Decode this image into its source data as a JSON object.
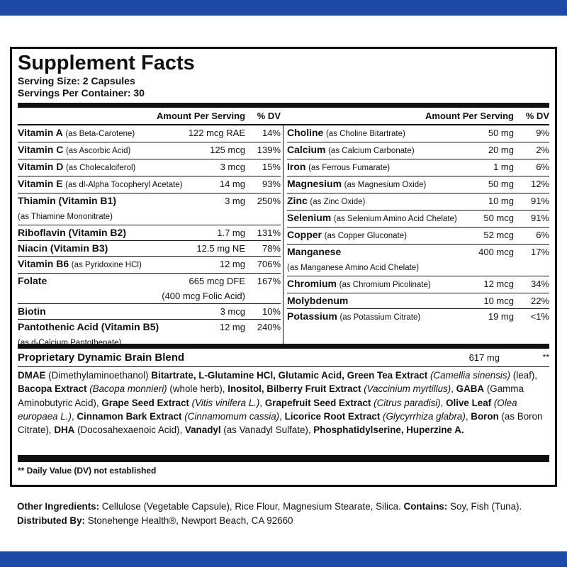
{
  "header": {
    "title": "Supplement Facts",
    "serving_size": "Serving Size: 2 Capsules",
    "servings_per_container": "Servings Per Container: 30"
  },
  "column_headers": {
    "amount": "Amount Per Serving",
    "dv": "% DV"
  },
  "left_nutrients": [
    {
      "name": "Vitamin A",
      "detail": "(as Beta-Carotene)",
      "amount": "122 mcg RAE",
      "dv": "14%"
    },
    {
      "name": "Vitamin C",
      "detail": "(as Ascorbic Acid)",
      "amount": "125 mcg",
      "dv": "139%"
    },
    {
      "name": "Vitamin D",
      "detail": "(as Cholecalciferol)",
      "amount": "3 mcg",
      "dv": "15%"
    },
    {
      "name": "Vitamin E",
      "detail": "(as dl-Alpha Tocopheryl Acetate)",
      "amount": "14 mg",
      "dv": "93%"
    },
    {
      "name": "Thiamin (Vitamin B1)",
      "detail_below": "(as Thiamine Mononitrate)",
      "amount": "3 mg",
      "dv": "250%"
    },
    {
      "name": "Riboflavin (Vitamin B2)",
      "amount": "1.7 mg",
      "dv": "131%"
    },
    {
      "name": "Niacin (Vitamin B3)",
      "amount": "12.5 mg NE",
      "dv": "78%"
    },
    {
      "name": "Vitamin B6",
      "detail": "(as Pyridoxine HCl)",
      "amount": "12 mg",
      "dv": "706%"
    },
    {
      "name": "Folate",
      "amount": "665 mcg DFE",
      "amount_below": "(400 mcg Folic Acid)",
      "dv": "167%"
    },
    {
      "name": "Biotin",
      "amount": "3 mcg",
      "dv": "10%"
    },
    {
      "name": "Pantothenic Acid (Vitamin B5)",
      "detail_below": "(as d-Calcium Pantothenate)",
      "amount": "12 mg",
      "dv": "240%"
    }
  ],
  "right_nutrients": [
    {
      "name": "Choline",
      "detail": "(as Choline Bitartrate)",
      "amount": "50 mg",
      "dv": "9%"
    },
    {
      "name": "Calcium",
      "detail": "(as Calcium Carbonate)",
      "amount": "20 mg",
      "dv": "2%"
    },
    {
      "name": "Iron",
      "detail": "(as Ferrous Fumarate)",
      "amount": "1 mg",
      "dv": "6%"
    },
    {
      "name": "Magnesium",
      "detail": "(as Magnesium Oxide)",
      "amount": "50 mg",
      "dv": "12%"
    },
    {
      "name": "Zinc",
      "detail": "(as Zinc Oxide)",
      "amount": "10 mg",
      "dv": "91%"
    },
    {
      "name": "Selenium",
      "detail": "(as Selenium Amino Acid Chelate)",
      "amount": "50 mcg",
      "dv": "91%"
    },
    {
      "name": "Copper",
      "detail": "(as Copper Gluconate)",
      "amount": "52 mcg",
      "dv": "6%"
    },
    {
      "name": "Manganese",
      "detail_below": "(as Manganese Amino Acid Chelate)",
      "amount": "400 mcg",
      "dv": "17%"
    },
    {
      "name": "Chromium",
      "detail": "(as Chromium Picolinate)",
      "amount": "12 mcg",
      "dv": "34%"
    },
    {
      "name": "Molybdenum",
      "amount": "10 mcg",
      "dv": "22%"
    },
    {
      "name": "Potassium",
      "detail": "(as Potassium Citrate)",
      "amount": "19 mg",
      "dv": "<1%"
    }
  ],
  "blend": {
    "name": "Proprietary Dynamic Brain Blend",
    "amount": "617 mg",
    "dv": "**",
    "ingredients": [
      {
        "text": "DMAE",
        "style": "bold"
      },
      {
        "text": " (Dimethylaminoethanol) ",
        "style": "normal"
      },
      {
        "text": "Bitartrate, L-Glutamine HCl, Glutamic Acid, Green Tea Extract",
        "style": "bold"
      },
      {
        "text": " (Camellia sinensis)",
        "style": "italic"
      },
      {
        "text": " (leaf), ",
        "style": "normal"
      },
      {
        "text": "Bacopa Extract",
        "style": "bold"
      },
      {
        "text": " (Bacopa monnieri)",
        "style": "italic"
      },
      {
        "text": " (whole herb), ",
        "style": "normal"
      },
      {
        "text": "Inositol, Bilberry Fruit Extract",
        "style": "bold"
      },
      {
        "text": " (Vaccinium myrtillus)",
        "style": "italic"
      },
      {
        "text": ", ",
        "style": "normal"
      },
      {
        "text": "GABA",
        "style": "bold"
      },
      {
        "text": " (Gamma Aminobutyric Acid), ",
        "style": "normal"
      },
      {
        "text": "Grape Seed Extract",
        "style": "bold"
      },
      {
        "text": " (Vitis vinifera L.)",
        "style": "italic"
      },
      {
        "text": ", ",
        "style": "normal"
      },
      {
        "text": "Grapefruit Seed Extract",
        "style": "bold"
      },
      {
        "text": " (Citrus paradisi)",
        "style": "italic"
      },
      {
        "text": ", ",
        "style": "normal"
      },
      {
        "text": "Olive Leaf",
        "style": "bold"
      },
      {
        "text": " (Olea europaea L.)",
        "style": "italic"
      },
      {
        "text": ", ",
        "style": "normal"
      },
      {
        "text": "Cinnamon Bark Extract",
        "style": "bold"
      },
      {
        "text": " (Cinnamomum cassia)",
        "style": "italic"
      },
      {
        "text": ", ",
        "style": "normal"
      },
      {
        "text": "Licorice Root Extract",
        "style": "bold"
      },
      {
        "text": " (Glycyrrhiza glabra)",
        "style": "italic"
      },
      {
        "text": ", ",
        "style": "normal"
      },
      {
        "text": "Boron",
        "style": "bold"
      },
      {
        "text": " (as Boron Citrate), ",
        "style": "normal"
      },
      {
        "text": "DHA",
        "style": "bold"
      },
      {
        "text": " (Docosahexaenoic Acid), ",
        "style": "normal"
      },
      {
        "text": "Vanadyl",
        "style": "bold"
      },
      {
        "text": " (as Vanadyl Sulfate), ",
        "style": "normal"
      },
      {
        "text": "Phosphatidylserine, Huperzine A.",
        "style": "bold"
      }
    ]
  },
  "footnote": "** Daily Value (DV) not established",
  "other_ingredients": [
    {
      "text": "Other Ingredients:",
      "style": "bold"
    },
    {
      "text": " Cellulose (Vegetable Capsule), Rice Flour, Magnesium Stearate, Silica. ",
      "style": "normal"
    },
    {
      "text": "Contains:",
      "style": "bold"
    },
    {
      "text": " Soy, Fish (Tuna).",
      "style": "normal"
    }
  ],
  "distributed_by": [
    {
      "text": "Distributed By:",
      "style": "bold"
    },
    {
      "text": " Stonehenge Health®, Newport Beach, CA 92660",
      "style": "normal"
    }
  ]
}
